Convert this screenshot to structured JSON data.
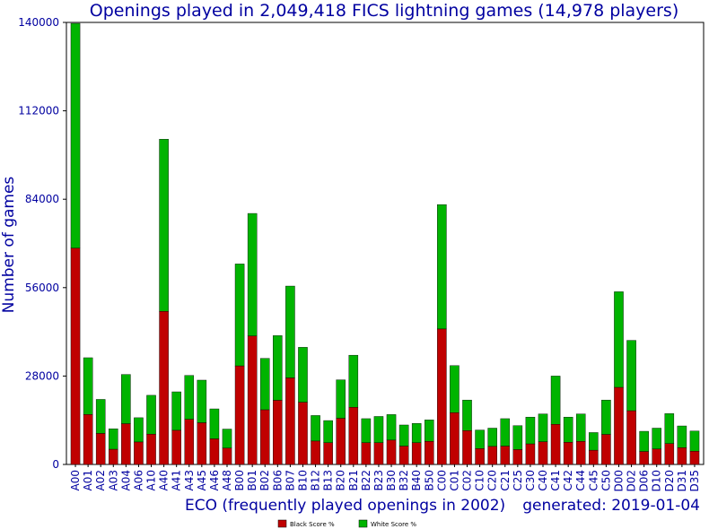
{
  "chart_data": {
    "type": "bar",
    "stacked": true,
    "title": "Openings played in 2,049,418 FICS lightning games (14,978 players)",
    "xlabel": "ECO (frequently played openings in 2002)",
    "ylabel": "Number of games",
    "generated": "generated: 2019-01-04",
    "ylim": [
      0,
      140000
    ],
    "yticks": [
      "0",
      "28000",
      "56000",
      "84000",
      "112000",
      "140000"
    ],
    "ytick_values": [
      0,
      28000,
      56000,
      84000,
      112000,
      140000
    ],
    "grid": false,
    "legend_position": "bottom",
    "categories": [
      "A00",
      "A01",
      "A02",
      "A03",
      "A04",
      "A06",
      "A10",
      "A40",
      "A41",
      "A43",
      "A45",
      "A46",
      "A48",
      "B00",
      "B01",
      "B02",
      "B06",
      "B07",
      "B10",
      "B12",
      "B13",
      "B20",
      "B21",
      "B22",
      "B23",
      "B30",
      "B32",
      "B40",
      "B50",
      "C00",
      "C01",
      "C02",
      "C10",
      "C20",
      "C21",
      "C25",
      "C30",
      "C40",
      "C41",
      "C42",
      "C44",
      "C45",
      "C50",
      "D00",
      "D02",
      "D06",
      "D10",
      "D20",
      "D31",
      "D35"
    ],
    "series": [
      {
        "name": "Black Score %",
        "color": "#c00000",
        "values": [
          68500,
          15800,
          9800,
          4800,
          12900,
          7100,
          9600,
          48500,
          10800,
          14300,
          13200,
          8100,
          5200,
          31200,
          40700,
          17300,
          20300,
          27400,
          19700,
          7400,
          6900,
          14600,
          18100,
          6900,
          6900,
          7700,
          5800,
          6900,
          7300,
          42900,
          16400,
          10700,
          5000,
          5700,
          5800,
          4700,
          6500,
          7200,
          12700,
          7000,
          7300,
          4500,
          9500,
          24400,
          17000,
          4100,
          4900,
          6600,
          5300,
          4200
        ],
        "totals": [
          139700,
          33800,
          20600,
          11300,
          28500,
          14800,
          21900,
          103000,
          23000,
          28200,
          26700,
          17600,
          11200,
          63500,
          79500,
          33600,
          40800,
          56500,
          37100,
          15500,
          13900,
          26800,
          34600,
          14500,
          15200,
          15800,
          12500,
          13000,
          14100,
          82300,
          31300,
          20400,
          10900,
          11500,
          14500,
          12300,
          15000,
          16000,
          28000,
          15000,
          16000,
          10100,
          20400,
          54700,
          39300,
          10500,
          11500,
          16100,
          12200,
          10600
        ]
      },
      {
        "name": "White Score %",
        "color": "#00b400",
        "values": [
          71200,
          18000,
          10800,
          6500,
          15600,
          7700,
          12300,
          54500,
          12200,
          13900,
          13500,
          9500,
          6000,
          32300,
          38800,
          16300,
          20500,
          29100,
          17400,
          8100,
          7000,
          12200,
          16500,
          7600,
          8300,
          8100,
          6700,
          6100,
          6800,
          39400,
          14900,
          9700,
          5900,
          5800,
          8700,
          7600,
          8500,
          8800,
          15300,
          8000,
          8700,
          5600,
          10900,
          30300,
          22300,
          6400,
          6600,
          9500,
          6900,
          6400
        ]
      }
    ]
  }
}
